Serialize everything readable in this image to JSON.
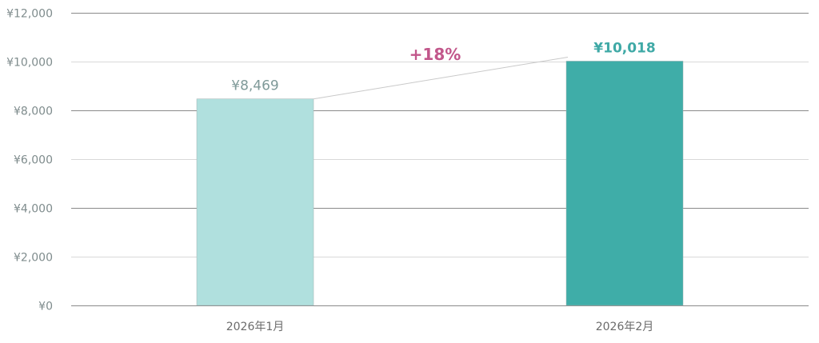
{
  "chart_data": {
    "type": "bar",
    "categories": [
      "2026年1月",
      "2026年2月"
    ],
    "values": [
      8469,
      10018
    ],
    "value_labels": [
      "¥8,469",
      "¥10,018"
    ],
    "bar_colors": [
      "#b0e0de",
      "#3fada8"
    ],
    "label_colors": [
      "#7f9a99",
      "#3fa9a6"
    ],
    "ylim": [
      0,
      12000
    ],
    "yticks": [
      0,
      2000,
      4000,
      6000,
      8000,
      10000,
      12000
    ],
    "ytick_labels": [
      "¥0",
      "¥2,000",
      "¥4,000",
      "¥6,000",
      "¥8,000",
      "¥10,000",
      "¥12,000"
    ],
    "grid": true,
    "annotation": {
      "text": "+18%",
      "color": "#c2578b"
    }
  }
}
